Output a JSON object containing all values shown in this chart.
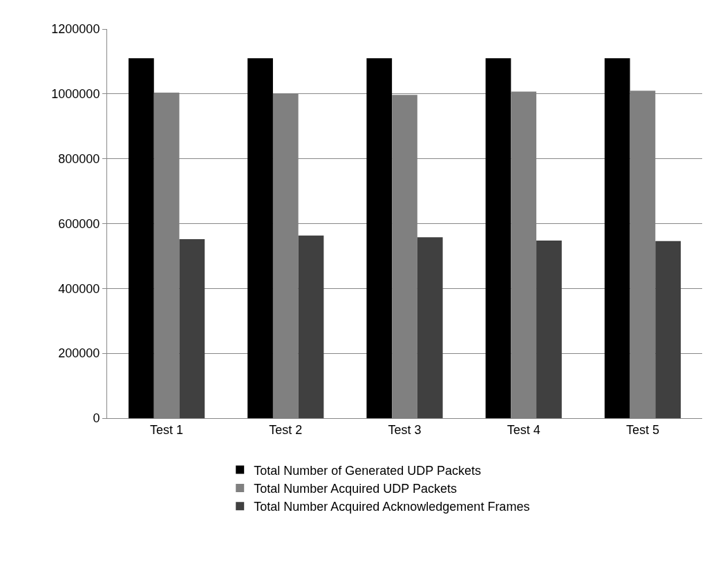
{
  "chart_data": {
    "type": "bar",
    "categories": [
      "Test 1",
      "Test 2",
      "Test 3",
      "Test 4",
      "Test 5"
    ],
    "series": [
      {
        "name": "Total Number of Generated UDP Packets",
        "color": "#000000",
        "values": [
          1110000,
          1110000,
          1110000,
          1110000,
          1110000
        ]
      },
      {
        "name": "Total Number Acquired UDP Packets",
        "color": "#808080",
        "values": [
          1004000,
          1002000,
          997000,
          1007000,
          1010000
        ]
      },
      {
        "name": "Total Number Acquired Acknowledgement Frames",
        "color": "#404040",
        "values": [
          552000,
          563000,
          558000,
          548000,
          546000
        ]
      }
    ],
    "ylim": [
      0,
      1200000
    ],
    "yticks": [
      0,
      200000,
      400000,
      600000,
      800000,
      1000000,
      1200000
    ],
    "grid": "y",
    "legend": "bottom"
  }
}
